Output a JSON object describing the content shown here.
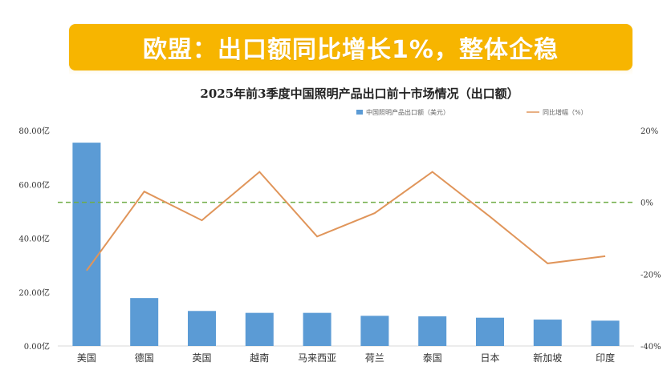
{
  "banner": {
    "text": "欧盟：出口额同比增长1%，整体企稳",
    "color": "#f7b500"
  },
  "chart_data": {
    "type": "bar",
    "title": "2025年前3季度中国照明产品出口前十市场情况（出口额）",
    "categories": [
      "美国",
      "德国",
      "英国",
      "越南",
      "马来西亚",
      "荷兰",
      "泰国",
      "日本",
      "新加坡",
      "印度"
    ],
    "series": [
      {
        "name": "中国照明产品出口额（美元）",
        "type": "bar",
        "axis": "left",
        "color": "#5b9bd5",
        "values": [
          75.5,
          17.8,
          13.0,
          12.3,
          12.3,
          11.2,
          11.0,
          10.5,
          9.8,
          9.4
        ]
      },
      {
        "name": "同比增幅（%）",
        "type": "line",
        "axis": "right",
        "color": "#e0955a",
        "values": [
          -19,
          3,
          -5,
          8.5,
          -9.5,
          -3,
          8.5,
          -4,
          -17,
          -15
        ]
      }
    ],
    "y_left": {
      "ticks": [
        "0.00亿",
        "20.00亿",
        "40.00亿",
        "60.00亿",
        "80.00亿"
      ],
      "ylim": [
        0,
        80
      ]
    },
    "y_right": {
      "ticks": [
        "-40%",
        "-20%",
        "0%",
        "20%"
      ],
      "ylim": [
        -40,
        20
      ]
    },
    "reference_line": {
      "axis": "right",
      "value": 0,
      "style": "dashed",
      "color": "#70ad47"
    },
    "legend_position": "top",
    "grid": false
  }
}
